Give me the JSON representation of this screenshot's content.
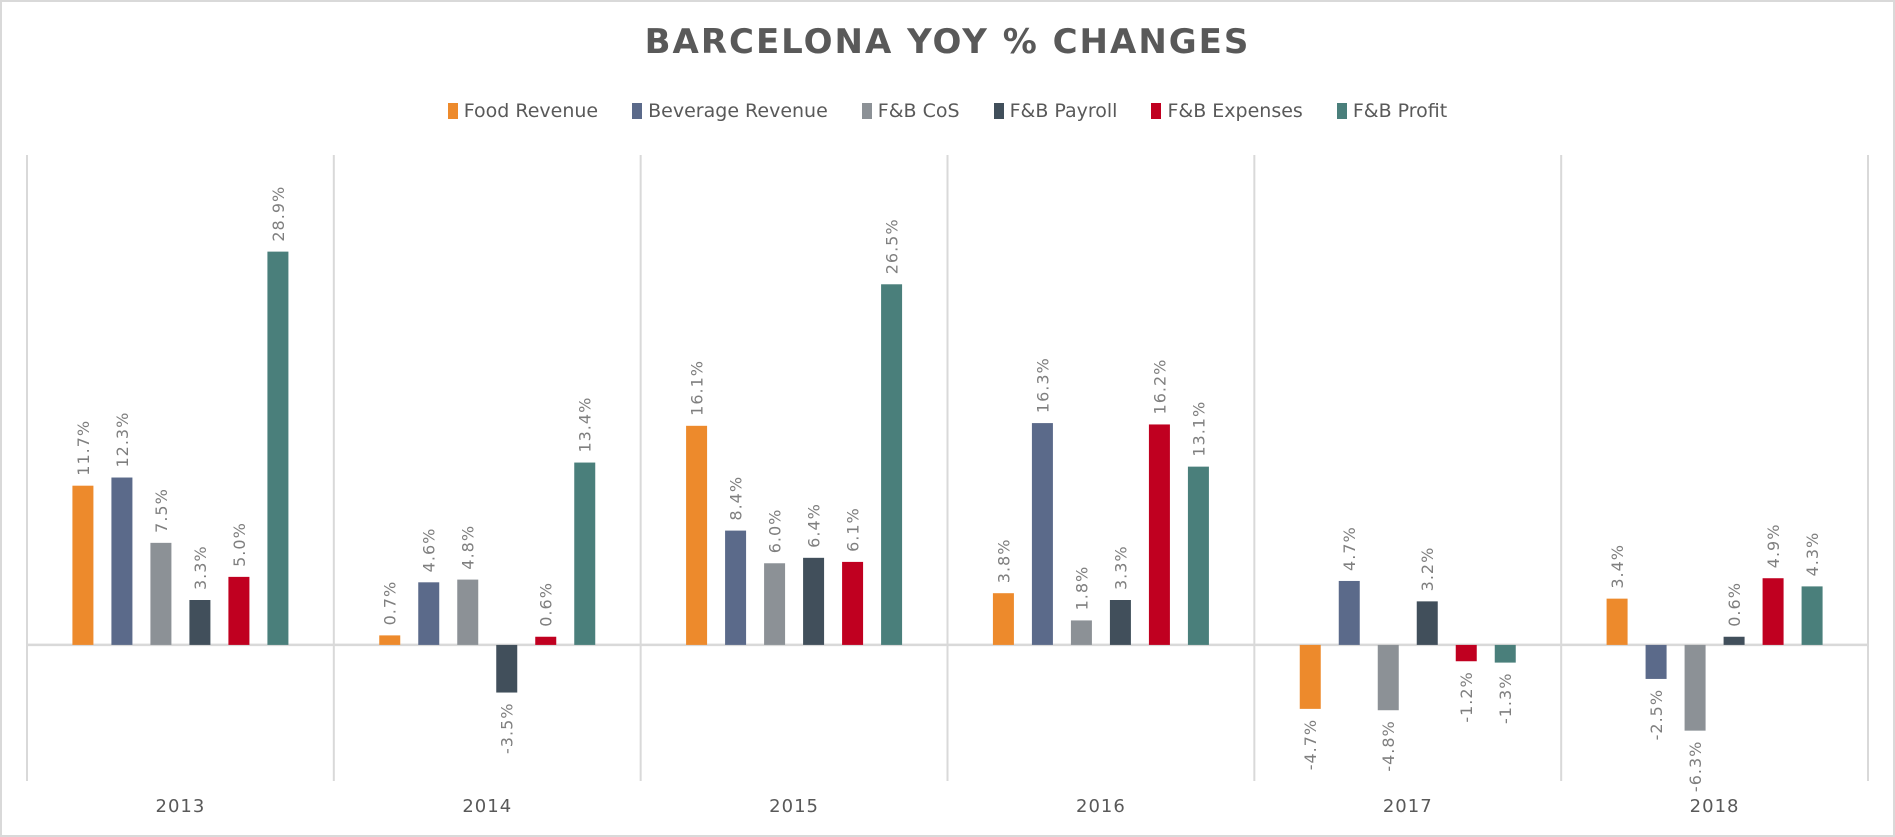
{
  "chart_data": {
    "type": "bar",
    "title": "BARCELONA YOY % CHANGES",
    "xlabel": "",
    "ylabel": "",
    "ylim": [
      -10,
      36
    ],
    "grid": false,
    "legend_position": "top",
    "categories": [
      "2013",
      "2014",
      "2015",
      "2016",
      "2017",
      "2018"
    ],
    "series": [
      {
        "name": "Food Revenue",
        "color": "#ed8a2c",
        "values": [
          11.7,
          0.7,
          16.1,
          3.8,
          -4.7,
          3.4
        ],
        "labels": [
          "11.7%",
          "0.7%",
          "16.1%",
          "3.8%",
          "-4.7%",
          "3.4%"
        ]
      },
      {
        "name": "Beverage Revenue",
        "color": "#5b6a8a",
        "values": [
          12.3,
          4.6,
          8.4,
          16.3,
          4.7,
          -2.5
        ],
        "labels": [
          "12.3%",
          "4.6%",
          "8.4%",
          "16.3%",
          "4.7%",
          "-2.5%"
        ]
      },
      {
        "name": "F&B CoS",
        "color": "#8c9196",
        "values": [
          7.5,
          4.8,
          6.0,
          1.8,
          -4.8,
          -6.3
        ],
        "labels": [
          "7.5%",
          "4.8%",
          "6.0%",
          "1.8%",
          "-4.8%",
          "-6.3%"
        ]
      },
      {
        "name": "F&B Payroll",
        "color": "#414f5b",
        "values": [
          3.3,
          -3.5,
          6.4,
          3.3,
          3.2,
          0.6
        ],
        "labels": [
          "3.3%",
          "-3.5%",
          "6.4%",
          "3.3%",
          "3.2%",
          "0.6%"
        ]
      },
      {
        "name": "F&B Expenses",
        "color": "#c00020",
        "values": [
          5.0,
          0.6,
          6.1,
          16.2,
          -1.2,
          4.9
        ],
        "labels": [
          "5.0%",
          "0.6%",
          "6.1%",
          "16.2%",
          "-1.2%",
          "4.9%"
        ]
      },
      {
        "name": "F&B Profit",
        "color": "#4a7f7b",
        "values": [
          28.9,
          13.4,
          26.5,
          13.1,
          -1.3,
          4.3
        ],
        "labels": [
          "28.9%",
          "13.4%",
          "26.5%",
          "13.1%",
          "-1.3%",
          "4.3%"
        ]
      }
    ]
  }
}
